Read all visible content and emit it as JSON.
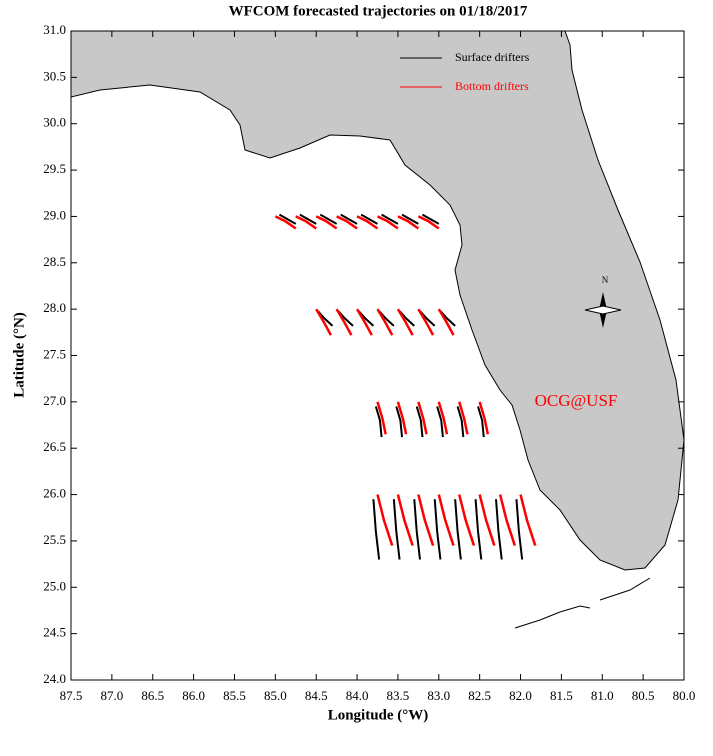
{
  "chart_data": {
    "type": "trajectory-map",
    "title": "WFCOM forecasted trajectories on 01/18/2017",
    "x_label": "Longitude (°W)",
    "y_label": "Latitude (°N)",
    "xlim": [
      87.5,
      80.0
    ],
    "ylim": [
      24.0,
      31.0
    ],
    "xticks": [
      87.5,
      {
        "value": 87,
        "label": "87.0"
      },
      86.5,
      {
        "value": 86,
        "label": "86.0"
      },
      85.5,
      {
        "value": 85,
        "label": "85.0"
      },
      84.5,
      {
        "value": 84,
        "label": "84.0"
      },
      83.5,
      {
        "value": 83,
        "label": "83.0"
      },
      82.5,
      {
        "value": 82,
        "label": "82.0"
      },
      81.5,
      {
        "value": 81,
        "label": "81.0"
      },
      80.5,
      {
        "value": 80,
        "label": "80.0"
      }
    ],
    "yticks": [
      {
        "value": 24,
        "label": "24.0"
      },
      24.5,
      {
        "value": 25,
        "label": "25.0"
      },
      25.5,
      {
        "value": 26,
        "label": "26.0"
      },
      26.5,
      {
        "value": 27,
        "label": "27.0"
      },
      27.5,
      {
        "value": 28,
        "label": "28.0"
      },
      28.5,
      {
        "value": 29,
        "label": "29.0"
      },
      29.5,
      {
        "value": 30,
        "label": "30.0"
      },
      30.5,
      {
        "value": 31,
        "label": "31.0"
      }
    ],
    "annotation": {
      "text": "OCG@USF",
      "color": "#ff0000"
    },
    "compass_label": "N",
    "series": [
      {
        "name": "Surface drifters",
        "color": "#000000",
        "trajectories": [
          {
            "x": [
              84.95,
              84.85,
              84.75
            ],
            "y": [
              29.02,
              28.97,
              28.92
            ]
          },
          {
            "x": [
              84.7,
              84.6,
              84.5
            ],
            "y": [
              29.02,
              28.97,
              28.92
            ]
          },
          {
            "x": [
              84.45,
              84.35,
              84.25
            ],
            "y": [
              29.02,
              28.97,
              28.92
            ]
          },
          {
            "x": [
              84.2,
              84.1,
              84.0
            ],
            "y": [
              29.02,
              28.97,
              28.92
            ]
          },
          {
            "x": [
              83.95,
              83.85,
              83.75
            ],
            "y": [
              29.02,
              28.97,
              28.92
            ]
          },
          {
            "x": [
              83.7,
              83.6,
              83.5
            ],
            "y": [
              29.02,
              28.97,
              28.92
            ]
          },
          {
            "x": [
              83.45,
              83.35,
              83.25
            ],
            "y": [
              29.02,
              28.97,
              28.92
            ]
          },
          {
            "x": [
              83.2,
              83.1,
              83.0
            ],
            "y": [
              29.02,
              28.97,
              28.92
            ]
          },
          {
            "x": [
              84.48,
              84.4,
              84.3
            ],
            "y": [
              27.98,
              27.9,
              27.82
            ]
          },
          {
            "x": [
              84.23,
              84.15,
              84.05
            ],
            "y": [
              27.98,
              27.9,
              27.82
            ]
          },
          {
            "x": [
              83.98,
              83.9,
              83.8
            ],
            "y": [
              27.98,
              27.9,
              27.82
            ]
          },
          {
            "x": [
              83.73,
              83.65,
              83.55
            ],
            "y": [
              27.98,
              27.9,
              27.82
            ]
          },
          {
            "x": [
              83.48,
              83.4,
              83.3
            ],
            "y": [
              27.98,
              27.9,
              27.82
            ]
          },
          {
            "x": [
              83.23,
              83.15,
              83.05
            ],
            "y": [
              27.98,
              27.9,
              27.82
            ]
          },
          {
            "x": [
              82.98,
              82.9,
              82.8
            ],
            "y": [
              27.98,
              27.9,
              27.82
            ]
          },
          {
            "x": [
              83.77,
              83.72,
              83.7
            ],
            "y": [
              26.95,
              26.8,
              26.62
            ]
          },
          {
            "x": [
              83.52,
              83.47,
              83.45
            ],
            "y": [
              26.95,
              26.8,
              26.62
            ]
          },
          {
            "x": [
              83.27,
              83.22,
              83.2
            ],
            "y": [
              26.95,
              26.8,
              26.62
            ]
          },
          {
            "x": [
              83.02,
              82.97,
              82.95
            ],
            "y": [
              26.95,
              26.8,
              26.62
            ]
          },
          {
            "x": [
              82.77,
              82.72,
              82.7
            ],
            "y": [
              26.95,
              26.8,
              26.62
            ]
          },
          {
            "x": [
              82.52,
              82.47,
              82.45
            ],
            "y": [
              26.95,
              26.8,
              26.62
            ]
          },
          {
            "x": [
              83.8,
              83.77,
              83.73
            ],
            "y": [
              25.95,
              25.6,
              25.3
            ]
          },
          {
            "x": [
              83.55,
              83.52,
              83.48
            ],
            "y": [
              25.95,
              25.6,
              25.3
            ]
          },
          {
            "x": [
              83.3,
              83.27,
              83.23
            ],
            "y": [
              25.95,
              25.6,
              25.3
            ]
          },
          {
            "x": [
              83.05,
              83.02,
              82.98
            ],
            "y": [
              25.95,
              25.6,
              25.3
            ]
          },
          {
            "x": [
              82.8,
              82.77,
              82.73
            ],
            "y": [
              25.95,
              25.6,
              25.3
            ]
          },
          {
            "x": [
              82.55,
              82.52,
              82.48
            ],
            "y": [
              25.95,
              25.6,
              25.3
            ]
          },
          {
            "x": [
              82.3,
              82.27,
              82.23
            ],
            "y": [
              25.95,
              25.6,
              25.3
            ]
          },
          {
            "x": [
              82.05,
              82.02,
              81.98
            ],
            "y": [
              25.95,
              25.6,
              25.3
            ]
          }
        ]
      },
      {
        "name": "Bottom drifters",
        "color": "#ff0000",
        "trajectories": [
          {
            "x": [
              85.0,
              84.88,
              84.75
            ],
            "y": [
              29.0,
              28.95,
              28.87
            ]
          },
          {
            "x": [
              84.75,
              84.63,
              84.5
            ],
            "y": [
              29.0,
              28.95,
              28.87
            ]
          },
          {
            "x": [
              84.5,
              84.38,
              84.25
            ],
            "y": [
              29.0,
              28.95,
              28.87
            ]
          },
          {
            "x": [
              84.25,
              84.13,
              84.0
            ],
            "y": [
              29.0,
              28.95,
              28.87
            ]
          },
          {
            "x": [
              84.0,
              83.88,
              83.75
            ],
            "y": [
              29.0,
              28.95,
              28.87
            ]
          },
          {
            "x": [
              83.75,
              83.63,
              83.5
            ],
            "y": [
              29.0,
              28.95,
              28.87
            ]
          },
          {
            "x": [
              83.5,
              83.38,
              83.25
            ],
            "y": [
              29.0,
              28.95,
              28.87
            ]
          },
          {
            "x": [
              83.25,
              83.13,
              83.0
            ],
            "y": [
              29.0,
              28.95,
              28.87
            ]
          },
          {
            "x": [
              84.5,
              84.4,
              84.32
            ],
            "y": [
              28.0,
              27.85,
              27.72
            ]
          },
          {
            "x": [
              84.25,
              84.15,
              84.07
            ],
            "y": [
              28.0,
              27.85,
              27.72
            ]
          },
          {
            "x": [
              84.0,
              83.9,
              83.82
            ],
            "y": [
              28.0,
              27.85,
              27.72
            ]
          },
          {
            "x": [
              83.75,
              83.65,
              83.57
            ],
            "y": [
              28.0,
              27.85,
              27.72
            ]
          },
          {
            "x": [
              83.5,
              83.4,
              83.32
            ],
            "y": [
              28.0,
              27.85,
              27.72
            ]
          },
          {
            "x": [
              83.25,
              83.15,
              83.07
            ],
            "y": [
              28.0,
              27.85,
              27.72
            ]
          },
          {
            "x": [
              83.0,
              82.9,
              82.82
            ],
            "y": [
              28.0,
              27.85,
              27.72
            ]
          },
          {
            "x": [
              83.75,
              83.69,
              83.65
            ],
            "y": [
              27.0,
              26.82,
              26.65
            ]
          },
          {
            "x": [
              83.5,
              83.44,
              83.4
            ],
            "y": [
              27.0,
              26.82,
              26.65
            ]
          },
          {
            "x": [
              83.25,
              83.19,
              83.15
            ],
            "y": [
              27.0,
              26.82,
              26.65
            ]
          },
          {
            "x": [
              83.0,
              82.94,
              82.9
            ],
            "y": [
              27.0,
              26.82,
              26.65
            ]
          },
          {
            "x": [
              82.75,
              82.69,
              82.65
            ],
            "y": [
              27.0,
              26.82,
              26.65
            ]
          },
          {
            "x": [
              82.5,
              82.44,
              82.4
            ],
            "y": [
              27.0,
              26.82,
              26.65
            ]
          },
          {
            "x": [
              83.75,
              83.67,
              83.57
            ],
            "y": [
              26.0,
              25.72,
              25.45
            ]
          },
          {
            "x": [
              83.5,
              83.42,
              83.32
            ],
            "y": [
              26.0,
              25.72,
              25.45
            ]
          },
          {
            "x": [
              83.25,
              83.17,
              83.07
            ],
            "y": [
              26.0,
              25.72,
              25.45
            ]
          },
          {
            "x": [
              83.0,
              82.92,
              82.82
            ],
            "y": [
              26.0,
              25.72,
              25.45
            ]
          },
          {
            "x": [
              82.75,
              82.67,
              82.57
            ],
            "y": [
              26.0,
              25.72,
              25.45
            ]
          },
          {
            "x": [
              82.5,
              82.42,
              82.32
            ],
            "y": [
              26.0,
              25.72,
              25.45
            ]
          },
          {
            "x": [
              82.25,
              82.17,
              82.07
            ],
            "y": [
              26.0,
              25.72,
              25.45
            ]
          },
          {
            "x": [
              82.0,
              81.92,
              81.82
            ],
            "y": [
              26.0,
              25.72,
              25.45
            ]
          }
        ]
      }
    ]
  }
}
